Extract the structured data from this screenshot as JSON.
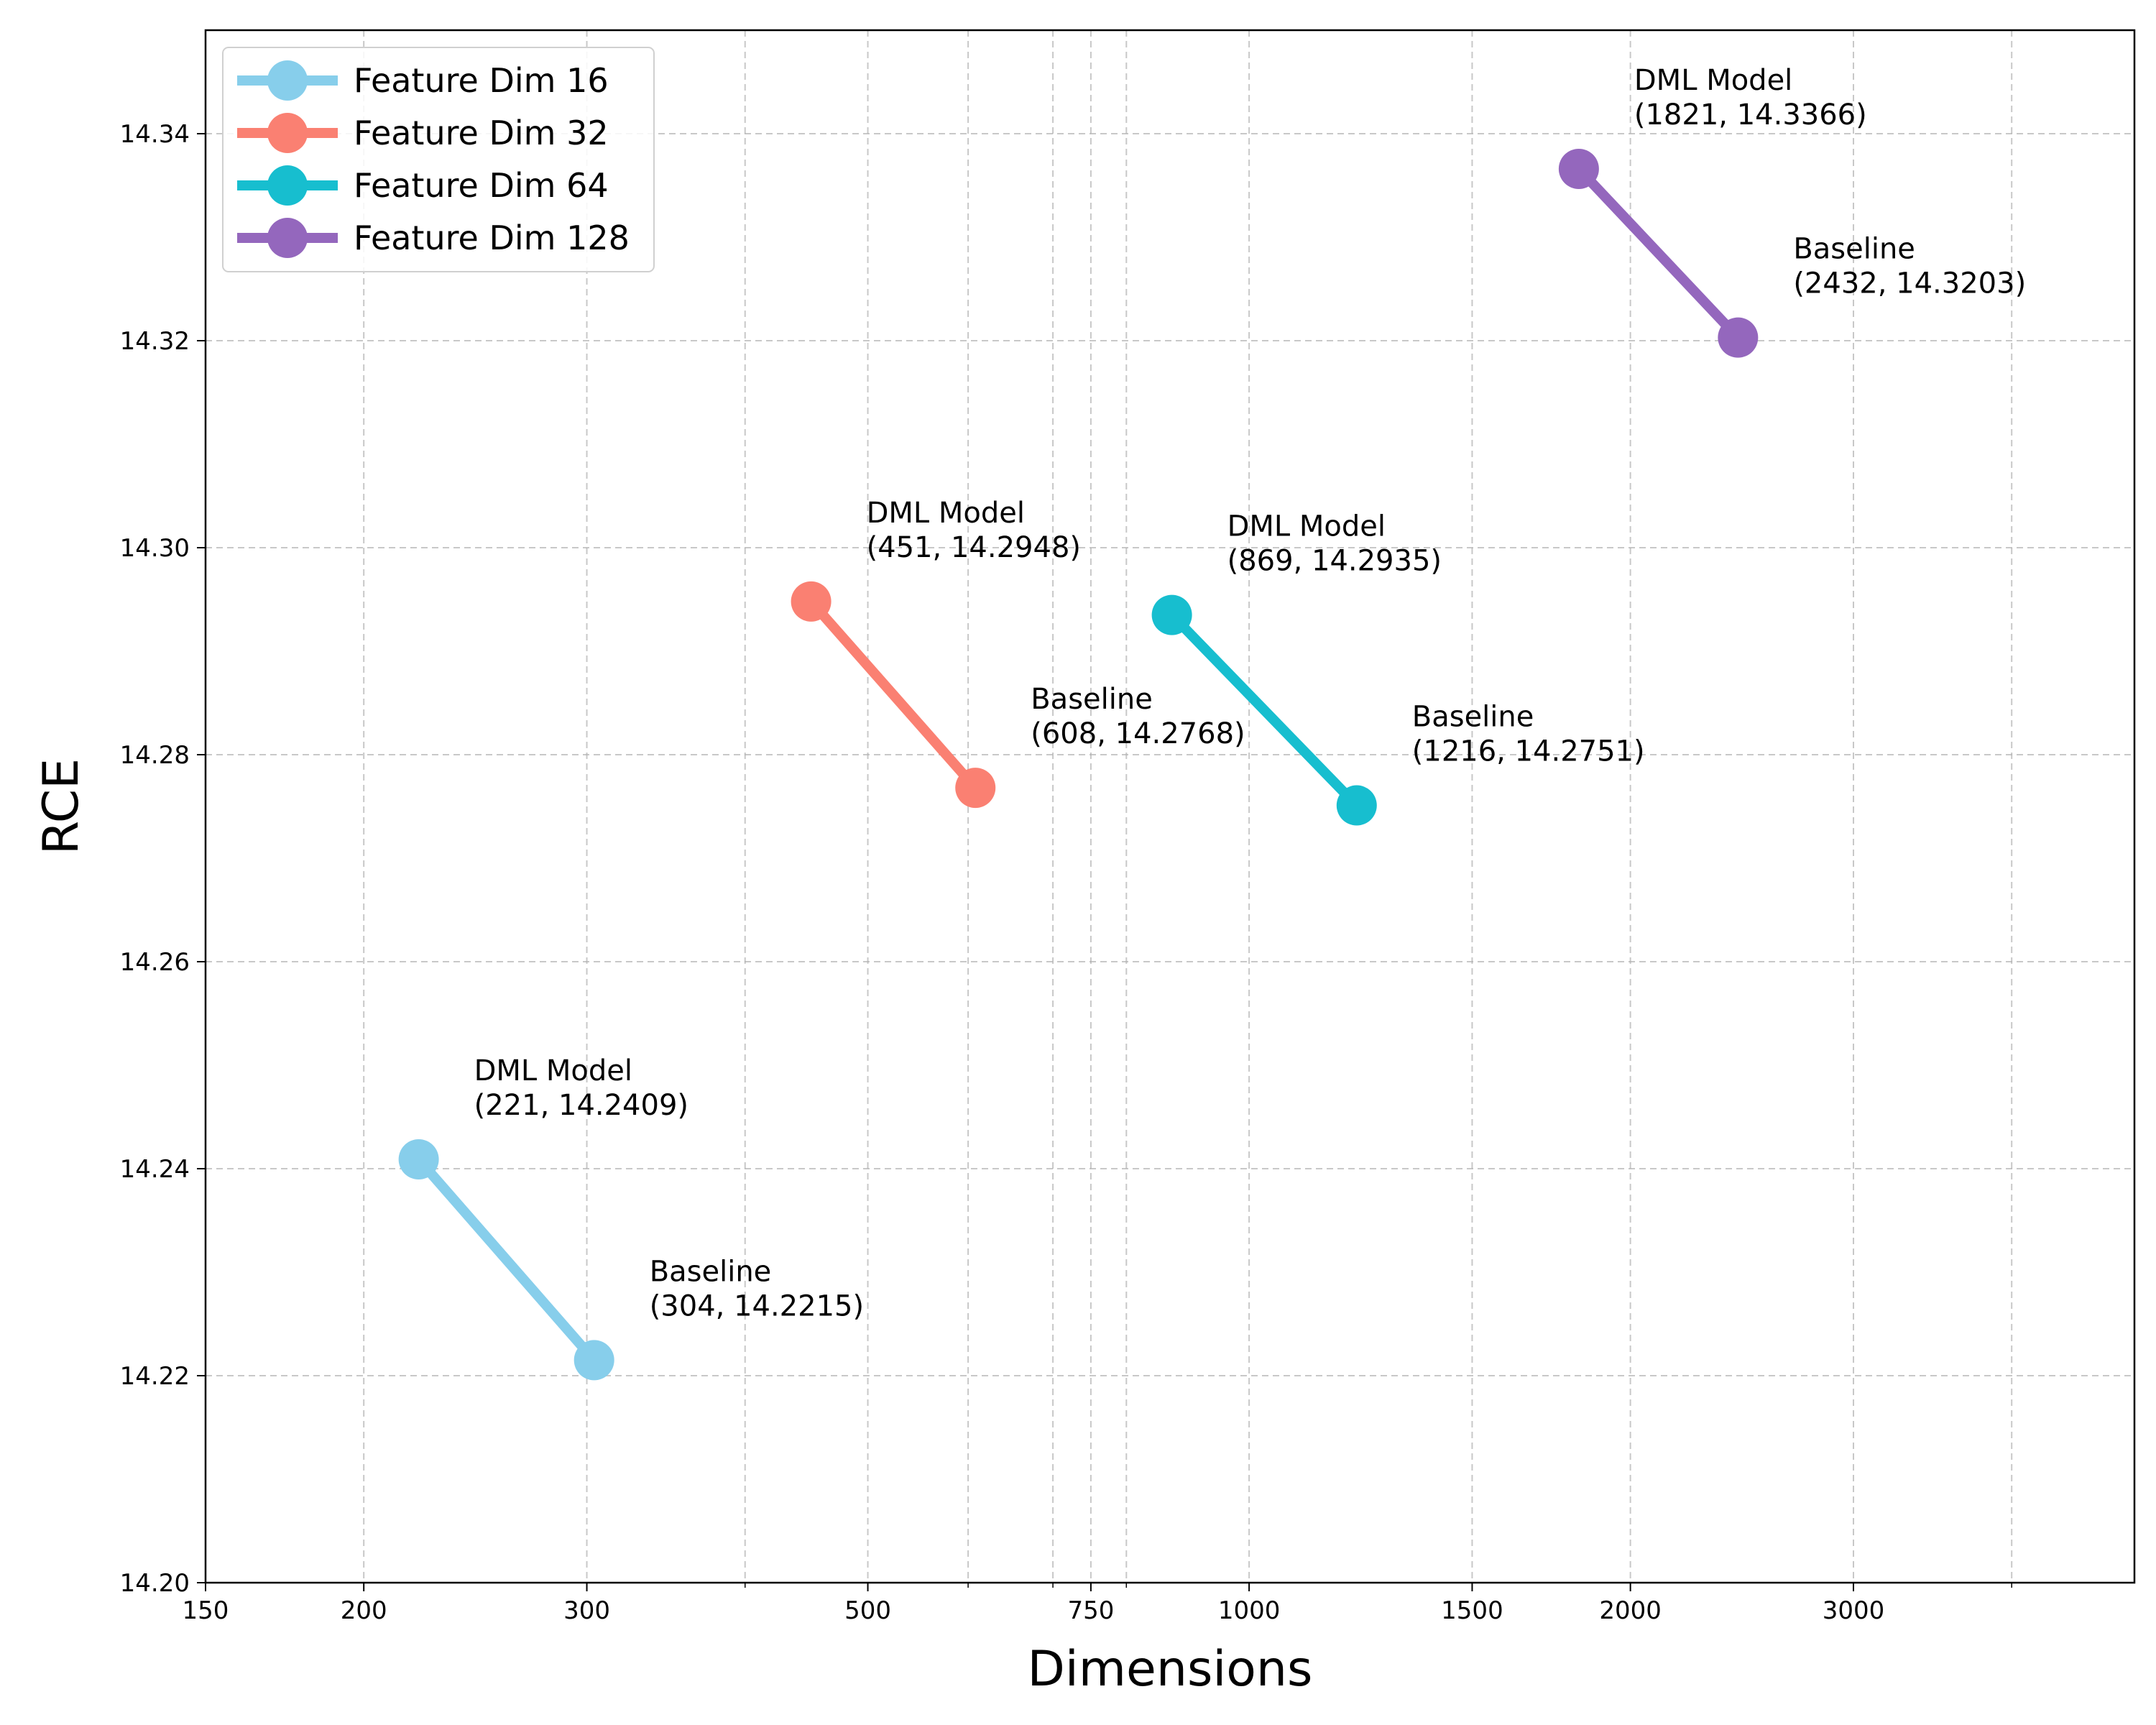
{
  "chart_data": {
    "type": "line",
    "title": "",
    "xlabel": "Dimensions",
    "ylabel": "RCE",
    "xscale": "log",
    "xlim": [
      150,
      5000
    ],
    "ylim": [
      14.2,
      14.35
    ],
    "xticks": [
      150,
      200,
      300,
      500,
      750,
      1000,
      1500,
      2000,
      3000
    ],
    "xtick_labels": [
      "150",
      "200",
      "300",
      "500",
      "750",
      "1000",
      "1500",
      "2000",
      "3000"
    ],
    "xgrid_extra": [
      400,
      600,
      700,
      800,
      4000
    ],
    "yticks": [
      14.2,
      14.22,
      14.24,
      14.26,
      14.28,
      14.3,
      14.32,
      14.34
    ],
    "ytick_labels": [
      "14.20",
      "14.22",
      "14.24",
      "14.26",
      "14.28",
      "14.30",
      "14.32",
      "14.34"
    ],
    "grid": true,
    "legend_position": "top-left",
    "series": [
      {
        "name": "Feature Dim 16",
        "color": "#87ceeb",
        "points": [
          {
            "x": 221,
            "y": 14.2409,
            "label": "DML Model",
            "coord_text": "(221, 14.2409)"
          },
          {
            "x": 304,
            "y": 14.2215,
            "label": "Baseline",
            "coord_text": "(304, 14.2215)"
          }
        ]
      },
      {
        "name": "Feature Dim 32",
        "color": "#fa8072",
        "points": [
          {
            "x": 451,
            "y": 14.2948,
            "label": "DML Model",
            "coord_text": "(451, 14.2948)"
          },
          {
            "x": 608,
            "y": 14.2768,
            "label": "Baseline",
            "coord_text": "(608, 14.2768)"
          }
        ]
      },
      {
        "name": "Feature Dim 64",
        "color": "#17becf",
        "points": [
          {
            "x": 869,
            "y": 14.2935,
            "label": "DML Model",
            "coord_text": "(869, 14.2935)"
          },
          {
            "x": 1216,
            "y": 14.2751,
            "label": "Baseline",
            "coord_text": "(1216, 14.2751)"
          }
        ]
      },
      {
        "name": "Feature Dim 128",
        "color": "#9467bd",
        "points": [
          {
            "x": 1821,
            "y": 14.3366,
            "label": "DML Model",
            "coord_text": "(1821, 14.3366)"
          },
          {
            "x": 2432,
            "y": 14.3203,
            "label": "Baseline",
            "coord_text": "(2432, 14.3203)"
          }
        ]
      }
    ]
  }
}
